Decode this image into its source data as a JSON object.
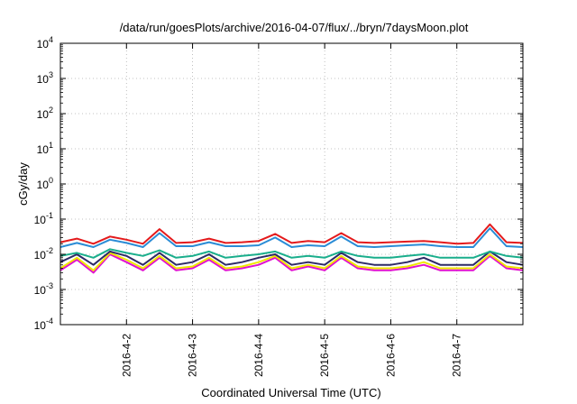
{
  "chart_data": {
    "type": "line",
    "title": "/data/run/goesPlots/archive/2016-04-07/flux/../bryn/7daysMoon.plot",
    "xlabel": "Coordinated Universal Time (UTC)",
    "ylabel": "cGy/day",
    "yscale": "log",
    "ylim": [
      0.0001,
      10000
    ],
    "xlim": [
      "2016-04-01",
      "2016-04-08"
    ],
    "grid": true,
    "y_ticks": [
      {
        "base": "10",
        "exp": "-4"
      },
      {
        "base": "10",
        "exp": "-3"
      },
      {
        "base": "10",
        "exp": "-2"
      },
      {
        "base": "10",
        "exp": "-1"
      },
      {
        "base": "10",
        "exp": "0"
      },
      {
        "base": "10",
        "exp": "1"
      },
      {
        "base": "10",
        "exp": "2"
      },
      {
        "base": "10",
        "exp": "3"
      },
      {
        "base": "10",
        "exp": "4"
      }
    ],
    "x_ticks": [
      "2016-4-2",
      "2016-4-3",
      "2016-4-4",
      "2016-4-5",
      "2016-4-6",
      "2016-4-7"
    ],
    "x_tick_days": [
      1,
      2,
      3,
      4,
      5,
      6
    ],
    "x_days": [
      0.0,
      0.25,
      0.5,
      0.75,
      1.0,
      1.25,
      1.5,
      1.75,
      2.0,
      2.25,
      2.5,
      2.75,
      3.0,
      3.25,
      3.5,
      3.75,
      4.0,
      4.25,
      4.5,
      4.75,
      5.0,
      5.25,
      5.5,
      5.75,
      6.0,
      6.25,
      6.5,
      6.75,
      7.0
    ],
    "series": [
      {
        "color": "#e41a1c",
        "values": [
          0.022,
          0.028,
          0.02,
          0.032,
          0.026,
          0.02,
          0.052,
          0.021,
          0.022,
          0.028,
          0.021,
          0.022,
          0.024,
          0.038,
          0.021,
          0.024,
          0.022,
          0.04,
          0.022,
          0.021,
          0.022,
          0.023,
          0.024,
          0.022,
          0.02,
          0.021,
          0.071,
          0.022,
          0.021
        ]
      },
      {
        "color": "#2a8cd6",
        "values": [
          0.016,
          0.021,
          0.016,
          0.026,
          0.021,
          0.016,
          0.04,
          0.017,
          0.017,
          0.022,
          0.017,
          0.017,
          0.018,
          0.03,
          0.016,
          0.018,
          0.017,
          0.032,
          0.017,
          0.016,
          0.017,
          0.018,
          0.019,
          0.017,
          0.016,
          0.016,
          0.055,
          0.017,
          0.016
        ]
      },
      {
        "color": "#1aae8c",
        "values": [
          0.009,
          0.011,
          0.008,
          0.014,
          0.011,
          0.009,
          0.013,
          0.008,
          0.009,
          0.012,
          0.008,
          0.009,
          0.01,
          0.012,
          0.008,
          0.009,
          0.008,
          0.012,
          0.009,
          0.008,
          0.008,
          0.009,
          0.01,
          0.008,
          0.008,
          0.008,
          0.012,
          0.009,
          0.008
        ]
      },
      {
        "color": "#2e2a66",
        "values": [
          0.006,
          0.01,
          0.005,
          0.012,
          0.009,
          0.005,
          0.011,
          0.005,
          0.006,
          0.01,
          0.005,
          0.006,
          0.008,
          0.01,
          0.005,
          0.006,
          0.005,
          0.011,
          0.006,
          0.005,
          0.005,
          0.006,
          0.008,
          0.005,
          0.005,
          0.005,
          0.012,
          0.006,
          0.005
        ]
      },
      {
        "color": "#f0e600",
        "values": [
          0.004,
          0.008,
          0.0035,
          0.011,
          0.007,
          0.004,
          0.009,
          0.004,
          0.0045,
          0.008,
          0.004,
          0.0045,
          0.006,
          0.009,
          0.004,
          0.005,
          0.004,
          0.009,
          0.0045,
          0.004,
          0.004,
          0.0045,
          0.006,
          0.004,
          0.004,
          0.004,
          0.01,
          0.0045,
          0.004
        ]
      },
      {
        "color": "#e010d0",
        "values": [
          0.0035,
          0.007,
          0.003,
          0.01,
          0.006,
          0.0035,
          0.008,
          0.0035,
          0.004,
          0.007,
          0.0035,
          0.004,
          0.005,
          0.008,
          0.0035,
          0.0045,
          0.0035,
          0.008,
          0.004,
          0.0035,
          0.0035,
          0.004,
          0.005,
          0.0035,
          0.0035,
          0.0035,
          0.009,
          0.004,
          0.0035
        ]
      }
    ]
  }
}
